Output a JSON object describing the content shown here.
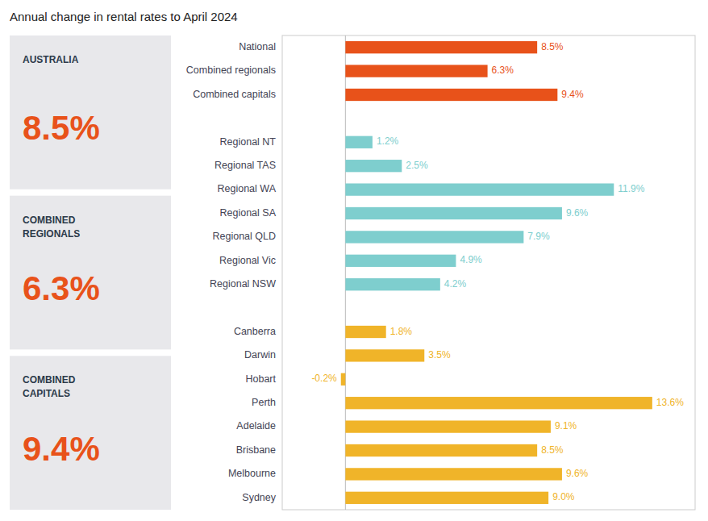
{
  "chart_data": {
    "type": "bar",
    "orientation": "horizontal",
    "title": "Annual change in rental rates to April 2024",
    "categories": [
      "National",
      "Combined regionals",
      "Combined capitals",
      null,
      "Regional NT",
      "Regional TAS",
      "Regional WA",
      "Regional SA",
      "Regional QLD",
      "Regional Vic",
      "Regional NSW",
      null,
      "Canberra",
      "Darwin",
      "Hobart",
      "Perth",
      "Adelaide",
      "Brisbane",
      "Melbourne",
      "Sydney"
    ],
    "values": [
      8.5,
      6.3,
      9.4,
      null,
      1.2,
      2.5,
      11.9,
      9.6,
      7.9,
      4.9,
      4.2,
      null,
      1.8,
      3.5,
      -0.2,
      13.6,
      9.1,
      8.5,
      9.6,
      9.0
    ],
    "value_labels": [
      "8.5%",
      "6.3%",
      "9.4%",
      null,
      "1.2%",
      "2.5%",
      "11.9%",
      "9.6%",
      "7.9%",
      "4.9%",
      "4.2%",
      null,
      "1.8%",
      "3.5%",
      "-0.2%",
      "13.6%",
      "9.1%",
      "8.5%",
      "9.6%",
      "9.0%"
    ],
    "colors": [
      "#e8521a",
      "#e8521a",
      "#e8521a",
      null,
      "#7ecece",
      "#7ecece",
      "#7ecece",
      "#7ecece",
      "#7ecece",
      "#7ecece",
      "#7ecece",
      null,
      "#f0b429",
      "#f0b429",
      "#f0b429",
      "#f0b429",
      "#f0b429",
      "#f0b429",
      "#f0b429",
      "#f0b429"
    ],
    "xlim": [
      -2.8,
      15.5
    ],
    "xticks": [
      0
    ],
    "grid": true,
    "tick_labels": "y",
    "data_labels": true,
    "annotations": [
      {
        "heading": "AUSTRALIA",
        "text": "8.5%",
        "color": "#e8521a"
      },
      {
        "heading": "COMBINED\nREGIONALS",
        "text": "6.3%",
        "color": "#e8521a"
      },
      {
        "heading": "COMBINED\nCAPITALS",
        "text": "9.4%",
        "color": "#e8521a"
      }
    ]
  }
}
